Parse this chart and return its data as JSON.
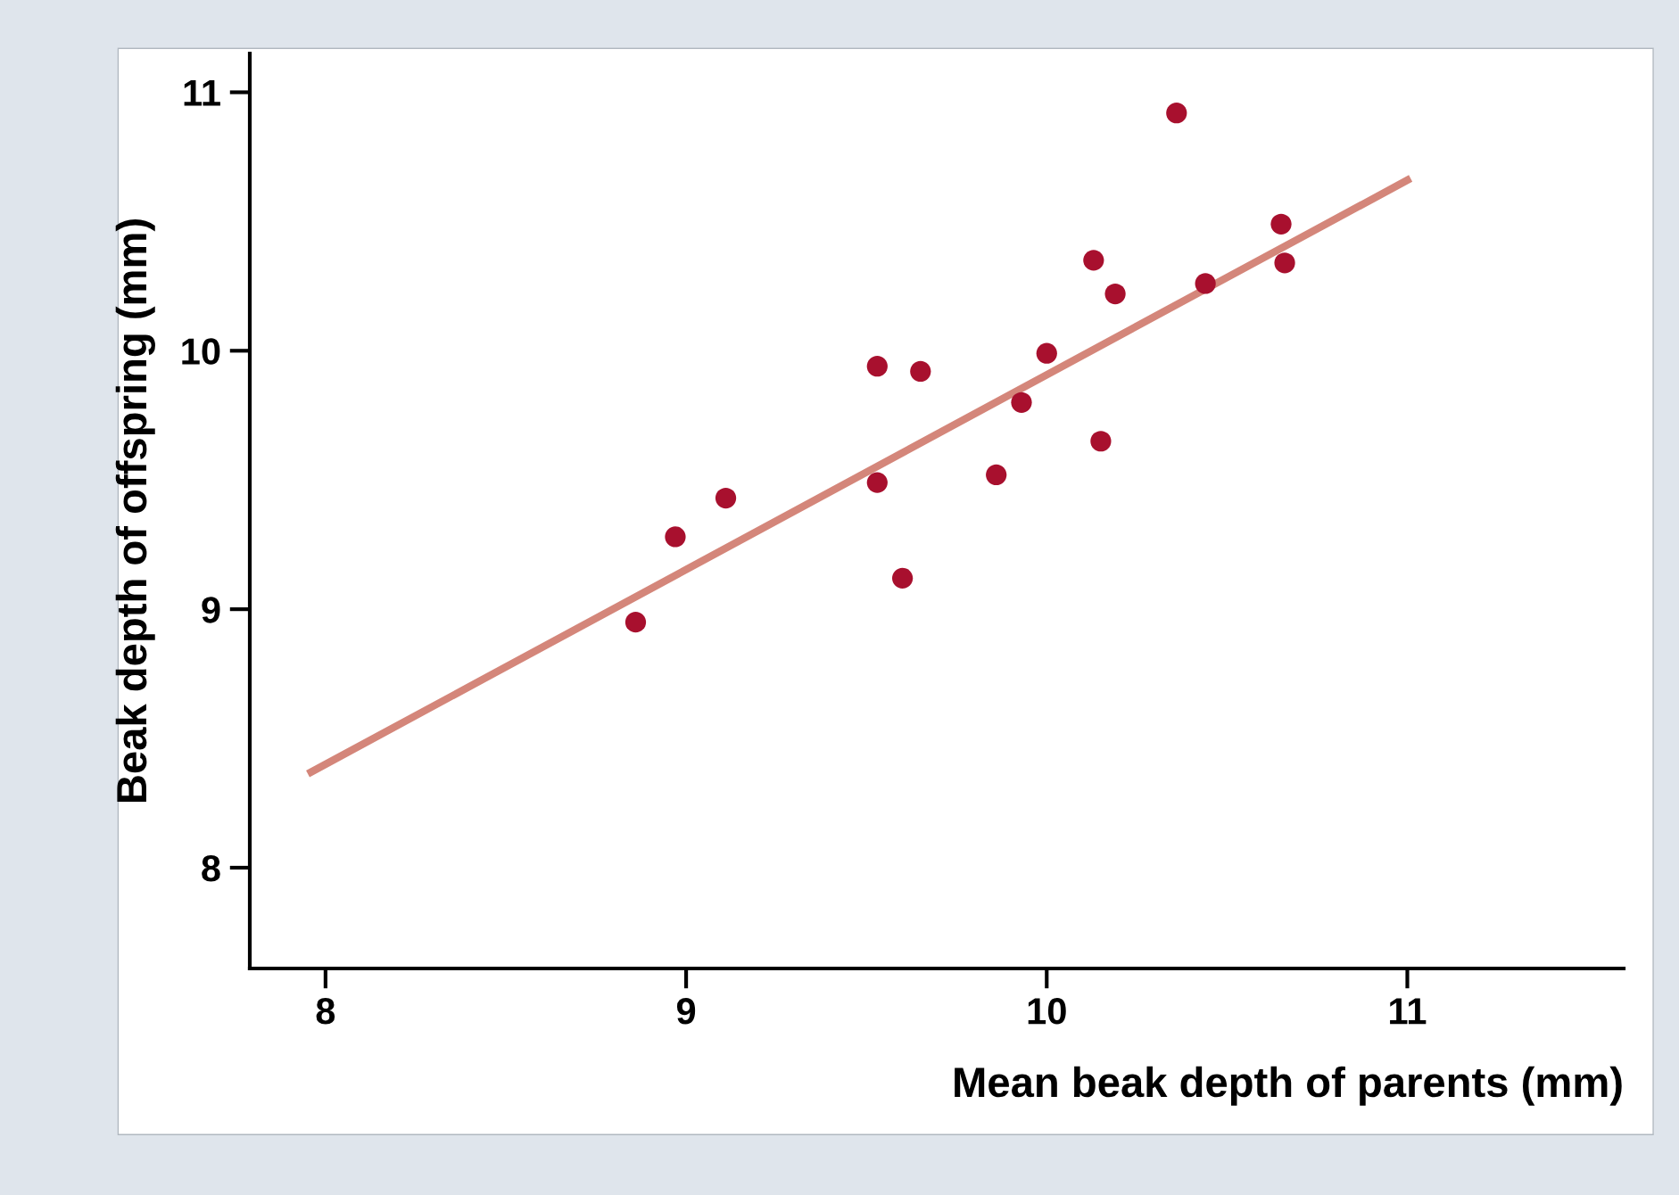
{
  "chart_data": {
    "type": "scatter",
    "xlabel": "Mean beak depth of parents (mm)",
    "ylabel": "Beak depth of offspring (mm)",
    "xlim": [
      7.79,
      11.6
    ],
    "ylim": [
      7.61,
      11.15
    ],
    "xticks": [
      8,
      9,
      10,
      11
    ],
    "yticks": [
      8,
      9,
      10,
      11
    ],
    "grid": false,
    "legend": false,
    "series": [
      {
        "marker": "circle",
        "color": "#a8102e",
        "x": [
          8.86,
          8.97,
          9.11,
          9.53,
          9.53,
          9.6,
          9.65,
          9.86,
          9.93,
          10.0,
          10.13,
          10.15,
          10.19,
          10.36,
          10.44,
          10.65,
          10.66
        ],
        "values": [
          8.95,
          9.28,
          9.43,
          9.94,
          9.49,
          9.12,
          9.92,
          9.52,
          9.8,
          9.99,
          10.35,
          9.65,
          10.22,
          10.92,
          10.26,
          10.49,
          10.34
        ]
      },
      {
        "type": "line",
        "marker": "none",
        "color": "#d4867a",
        "x": [
          7.96,
          11.0
        ],
        "values": [
          8.37,
          10.66
        ]
      }
    ]
  }
}
